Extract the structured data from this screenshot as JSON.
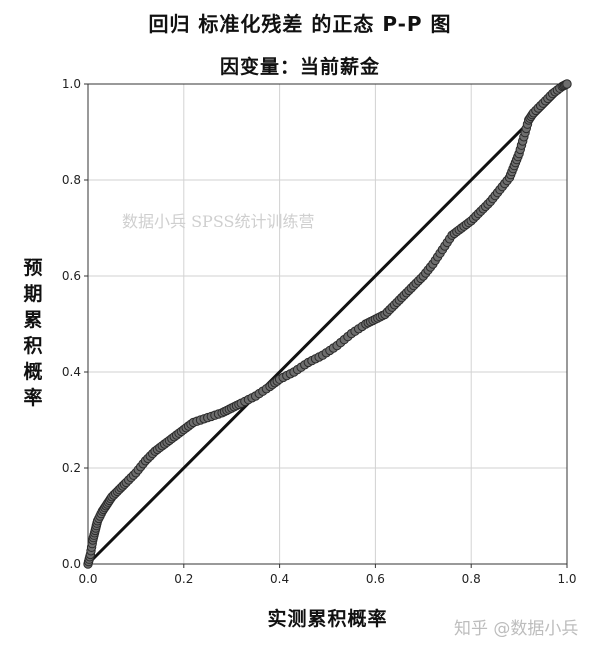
{
  "title": "回归 标准化残差 的正态 P-P 图",
  "subtitle": "因变量：当前薪金",
  "watermark_center": "数据小兵  SPSS统计训练营",
  "watermark_corner": "知乎 @数据小兵",
  "chart_data": {
    "type": "scatter",
    "title": "回归 标准化残差 的正态 P-P 图",
    "subtitle": "因变量：当前薪金",
    "xlabel": "实测累积概率",
    "ylabel": "预期累积概率",
    "xlim": [
      0,
      1
    ],
    "ylim": [
      0,
      1
    ],
    "xticks": [
      "0.0",
      "0.2",
      "0.4",
      "0.6",
      "0.8",
      "1.0"
    ],
    "yticks": [
      "0.0",
      "0.2",
      "0.4",
      "0.6",
      "0.8",
      "1.0"
    ],
    "grid": true,
    "legend": "none",
    "reference_line": [
      [
        0,
        0
      ],
      [
        1,
        1
      ]
    ],
    "points": [
      [
        0.0,
        0.0
      ],
      [
        0.005,
        0.02
      ],
      [
        0.01,
        0.05
      ],
      [
        0.015,
        0.07
      ],
      [
        0.02,
        0.09
      ],
      [
        0.03,
        0.11
      ],
      [
        0.04,
        0.125
      ],
      [
        0.05,
        0.14
      ],
      [
        0.065,
        0.155
      ],
      [
        0.08,
        0.17
      ],
      [
        0.1,
        0.19
      ],
      [
        0.12,
        0.215
      ],
      [
        0.14,
        0.235
      ],
      [
        0.16,
        0.25
      ],
      [
        0.18,
        0.265
      ],
      [
        0.2,
        0.28
      ],
      [
        0.22,
        0.295
      ],
      [
        0.25,
        0.305
      ],
      [
        0.28,
        0.315
      ],
      [
        0.3,
        0.325
      ],
      [
        0.32,
        0.335
      ],
      [
        0.35,
        0.35
      ],
      [
        0.38,
        0.37
      ],
      [
        0.4,
        0.385
      ],
      [
        0.43,
        0.4
      ],
      [
        0.46,
        0.42
      ],
      [
        0.49,
        0.435
      ],
      [
        0.52,
        0.455
      ],
      [
        0.55,
        0.48
      ],
      [
        0.58,
        0.5
      ],
      [
        0.6,
        0.51
      ],
      [
        0.62,
        0.52
      ],
      [
        0.64,
        0.54
      ],
      [
        0.66,
        0.56
      ],
      [
        0.68,
        0.58
      ],
      [
        0.7,
        0.6
      ],
      [
        0.72,
        0.625
      ],
      [
        0.74,
        0.655
      ],
      [
        0.76,
        0.685
      ],
      [
        0.78,
        0.7
      ],
      [
        0.8,
        0.715
      ],
      [
        0.82,
        0.735
      ],
      [
        0.84,
        0.755
      ],
      [
        0.86,
        0.78
      ],
      [
        0.88,
        0.805
      ],
      [
        0.89,
        0.83
      ],
      [
        0.9,
        0.855
      ],
      [
        0.91,
        0.89
      ],
      [
        0.92,
        0.925
      ],
      [
        0.93,
        0.94
      ],
      [
        0.95,
        0.96
      ],
      [
        0.97,
        0.98
      ],
      [
        0.99,
        0.995
      ],
      [
        1.0,
        1.0
      ]
    ],
    "colors": {
      "points": "#6e6e6e",
      "point_outline": "#2b2b2b",
      "line": "#111111",
      "grid": "#d2d2d2"
    }
  }
}
